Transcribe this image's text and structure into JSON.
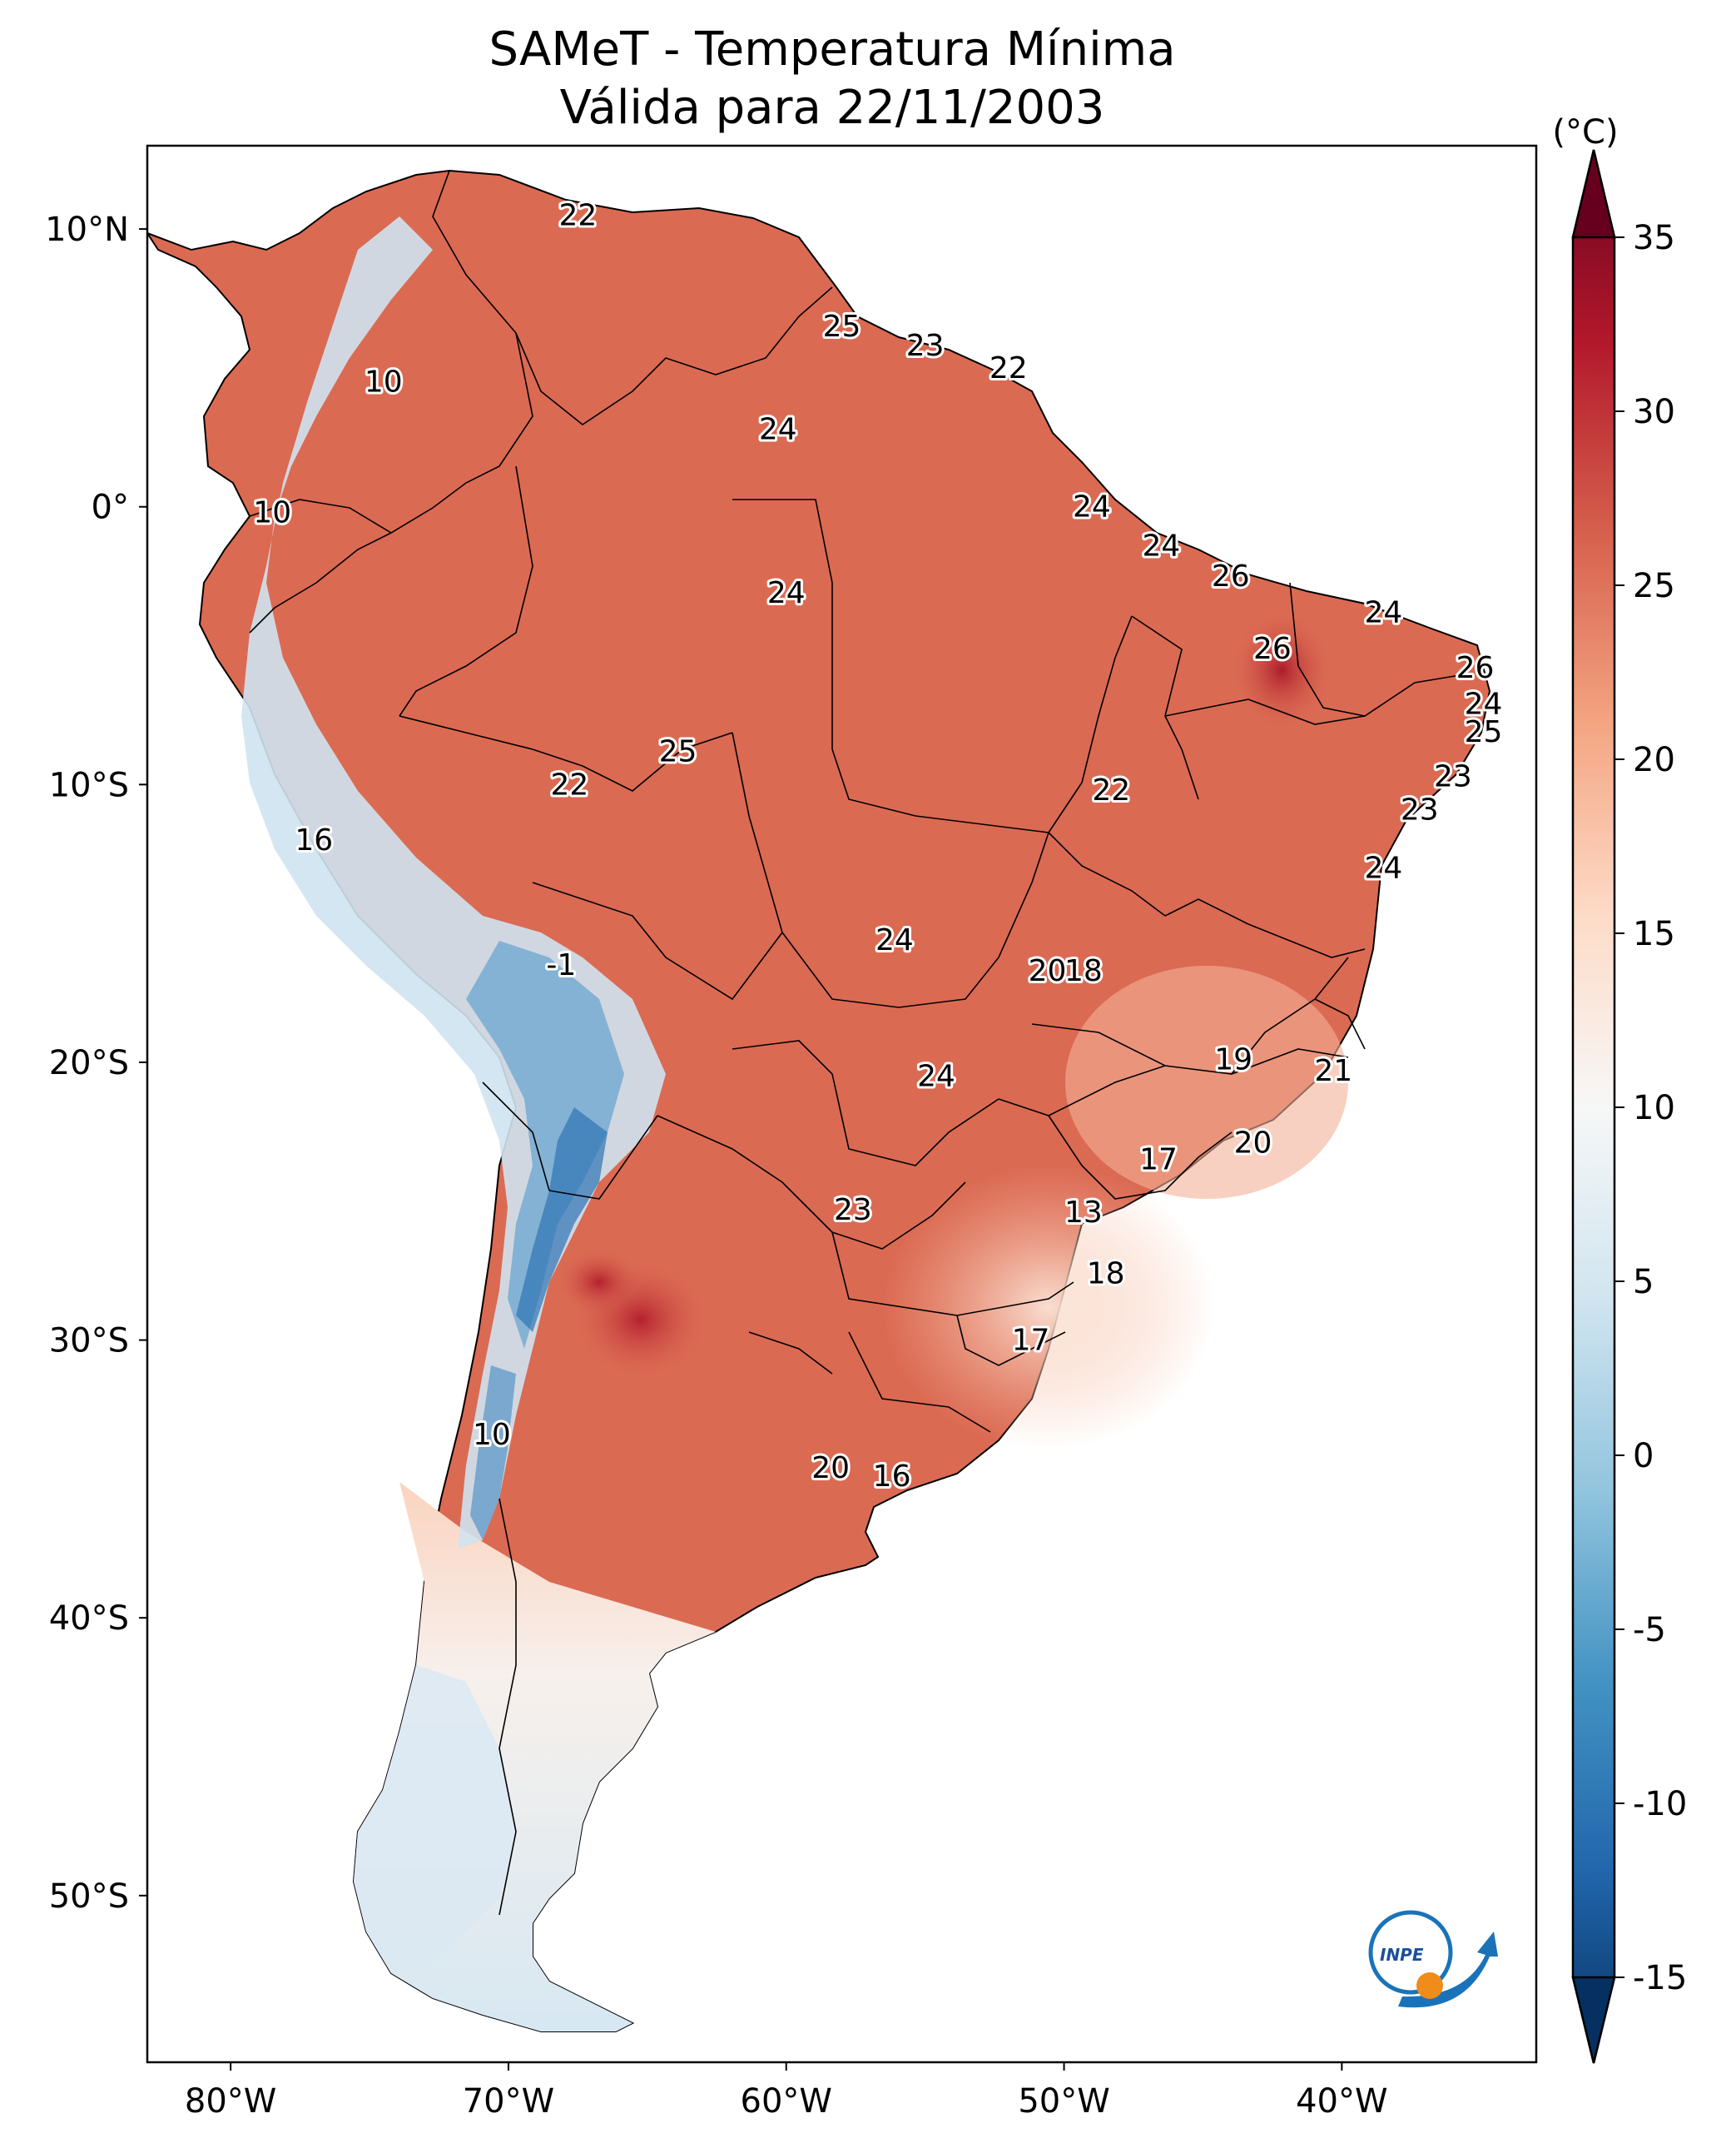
{
  "title": {
    "line1": "SAMeT - Temperatura Mínima",
    "line2": "Válida para 22/11/2003"
  },
  "colorbar": {
    "unit_label": "(°C)",
    "ticks": [
      "35",
      "30",
      "25",
      "20",
      "15",
      "10",
      "5",
      "0",
      "-5",
      "-10",
      "-15"
    ],
    "tick_values": [
      35,
      30,
      25,
      20,
      15,
      10,
      5,
      0,
      -5,
      -10,
      -15
    ],
    "min": -17,
    "max": 37,
    "colors": [
      "#053061",
      "#2166ac",
      "#4393c3",
      "#92c5de",
      "#d1e5f0",
      "#f7f7f7",
      "#fddbc7",
      "#f4a582",
      "#d6604d",
      "#b2182b",
      "#67001f"
    ]
  },
  "axes": {
    "lat_labels": [
      "10°N",
      "0°",
      "10°S",
      "20°S",
      "30°S",
      "40°S",
      "50°S"
    ],
    "lat_values": [
      10,
      0,
      -10,
      -20,
      -30,
      -40,
      -50
    ],
    "lon_labels": [
      "80°W",
      "70°W",
      "60°W",
      "50°W",
      "40°W"
    ],
    "lon_values": [
      -80,
      -70,
      -60,
      -50,
      -40
    ],
    "extent": {
      "lon_min": -83,
      "lon_max": -33,
      "lat_min": -56,
      "lat_max": 13
    }
  },
  "chart_data": {
    "type": "heatmap",
    "title": "SAMeT - Temperatura Mínima Válida para 22/11/2003",
    "variable": "Temperatura Mínima",
    "units": "°C",
    "date": "22/11/2003",
    "colorbar_range": [
      -15,
      35
    ],
    "station_values": [
      {
        "lon": -67.5,
        "lat": 10.5,
        "value": "22"
      },
      {
        "lon": -74.5,
        "lat": 4.5,
        "value": "10"
      },
      {
        "lon": -58,
        "lat": 6.5,
        "value": "25"
      },
      {
        "lon": -55,
        "lat": 5.8,
        "value": "23"
      },
      {
        "lon": -52,
        "lat": 5.0,
        "value": "22"
      },
      {
        "lon": -60.3,
        "lat": 2.8,
        "value": "24"
      },
      {
        "lon": -78.5,
        "lat": -0.2,
        "value": "10"
      },
      {
        "lon": -49,
        "lat": 0.0,
        "value": "24"
      },
      {
        "lon": -46.5,
        "lat": -1.4,
        "value": "24"
      },
      {
        "lon": -60,
        "lat": -3.1,
        "value": "24"
      },
      {
        "lon": -44,
        "lat": -2.5,
        "value": "26"
      },
      {
        "lon": -38.5,
        "lat": -3.8,
        "value": "24"
      },
      {
        "lon": -42.5,
        "lat": -5.1,
        "value": "26"
      },
      {
        "lon": -35.2,
        "lat": -5.8,
        "value": "26"
      },
      {
        "lon": -34.9,
        "lat": -7.1,
        "value": "24"
      },
      {
        "lon": -34.9,
        "lat": -8.1,
        "value": "25"
      },
      {
        "lon": -63.9,
        "lat": -8.8,
        "value": "25"
      },
      {
        "lon": -36,
        "lat": -9.7,
        "value": "23"
      },
      {
        "lon": -67.8,
        "lat": -10.0,
        "value": "22"
      },
      {
        "lon": -48.3,
        "lat": -10.2,
        "value": "22"
      },
      {
        "lon": -37.2,
        "lat": -10.9,
        "value": "23"
      },
      {
        "lon": -77.0,
        "lat": -12.0,
        "value": "16"
      },
      {
        "lon": -38.5,
        "lat": -13.0,
        "value": "24"
      },
      {
        "lon": -56.1,
        "lat": -15.6,
        "value": "24"
      },
      {
        "lon": -49.3,
        "lat": -16.7,
        "value": "18"
      },
      {
        "lon": -50.6,
        "lat": -16.7,
        "value": "20"
      },
      {
        "lon": -68.1,
        "lat": -16.5,
        "value": "-1"
      },
      {
        "lon": -43.9,
        "lat": -19.9,
        "value": "19"
      },
      {
        "lon": -40.3,
        "lat": -20.3,
        "value": "21"
      },
      {
        "lon": -54.6,
        "lat": -20.5,
        "value": "24"
      },
      {
        "lon": -43.2,
        "lat": -22.9,
        "value": "20"
      },
      {
        "lon": -46.6,
        "lat": -23.5,
        "value": "17"
      },
      {
        "lon": -57.6,
        "lat": -25.3,
        "value": "23"
      },
      {
        "lon": -49.3,
        "lat": -25.4,
        "value": "13"
      },
      {
        "lon": -48.5,
        "lat": -27.6,
        "value": "18"
      },
      {
        "lon": -51.2,
        "lat": -30.0,
        "value": "17"
      },
      {
        "lon": -70.6,
        "lat": -33.4,
        "value": "10"
      },
      {
        "lon": -58.4,
        "lat": -34.6,
        "value": "20"
      },
      {
        "lon": -56.2,
        "lat": -34.9,
        "value": "16"
      }
    ]
  },
  "logo": {
    "text": "INPE"
  }
}
